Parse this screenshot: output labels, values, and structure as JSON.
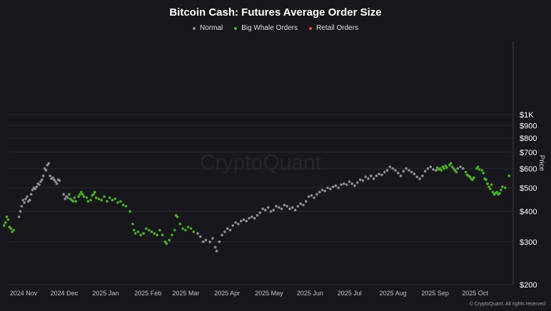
{
  "chart_data": {
    "type": "scatter",
    "title": "Bitcoin Cash: Futures Average Order Size",
    "ylabel": "Price",
    "watermark": "CryptoQuant",
    "credit": "© CryptoQuant. All rights reserved",
    "y_scale": "log",
    "ylim": [
      200,
      2000
    ],
    "xlim": [
      "2024-10-29",
      "2025-11-12"
    ],
    "grid": "horizontal",
    "legend_position": "top-center",
    "y_ticks": [
      {
        "value": 200,
        "label": "$200"
      },
      {
        "value": 300,
        "label": "$300"
      },
      {
        "value": 400,
        "label": "$400"
      },
      {
        "value": 500,
        "label": "$500"
      },
      {
        "value": 600,
        "label": "$600"
      },
      {
        "value": 700,
        "label": "$700"
      },
      {
        "value": 800,
        "label": "$800"
      },
      {
        "value": 900,
        "label": "$900"
      },
      {
        "value": 1000,
        "label": "$1K"
      }
    ],
    "x_ticks": [
      {
        "date": "2024-11-01",
        "label": "2024 Nov"
      },
      {
        "date": "2024-12-01",
        "label": "2024 Dec"
      },
      {
        "date": "2025-01-01",
        "label": "2025 Jan"
      },
      {
        "date": "2025-02-01",
        "label": "2025 Feb"
      },
      {
        "date": "2025-03-01",
        "label": "2025 Mar"
      },
      {
        "date": "2025-04-01",
        "label": "2025 Apr"
      },
      {
        "date": "2025-05-01",
        "label": "2025 May"
      },
      {
        "date": "2025-06-01",
        "label": "2025 Jun"
      },
      {
        "date": "2025-07-01",
        "label": "2025 Jul"
      },
      {
        "date": "2025-08-01",
        "label": "2025 Aug"
      },
      {
        "date": "2025-09-01",
        "label": "2025 Sep"
      },
      {
        "date": "2025-10-01",
        "label": "2025 Oct"
      }
    ],
    "series": [
      {
        "name": "Normal",
        "color": "#8d8d99",
        "points": [
          [
            "2024-11-12",
            380
          ],
          [
            "2024-11-13",
            400
          ],
          [
            "2024-11-14",
            420
          ],
          [
            "2024-11-15",
            445
          ],
          [
            "2024-11-16",
            435
          ],
          [
            "2024-11-17",
            450
          ],
          [
            "2024-11-18",
            460
          ],
          [
            "2024-11-19",
            440
          ],
          [
            "2024-11-20",
            445
          ],
          [
            "2024-11-21",
            470
          ],
          [
            "2024-11-22",
            490
          ],
          [
            "2024-11-23",
            500
          ],
          [
            "2024-11-24",
            495
          ],
          [
            "2024-11-25",
            505
          ],
          [
            "2024-11-26",
            520
          ],
          [
            "2024-11-27",
            515
          ],
          [
            "2024-11-28",
            530
          ],
          [
            "2024-11-29",
            540
          ],
          [
            "2024-11-30",
            560
          ],
          [
            "2024-12-01",
            600
          ],
          [
            "2024-12-02",
            590
          ],
          [
            "2024-12-03",
            620
          ],
          [
            "2024-12-04",
            630
          ],
          [
            "2024-12-05",
            560
          ],
          [
            "2024-12-06",
            545
          ],
          [
            "2024-12-07",
            550
          ],
          [
            "2024-12-08",
            540
          ],
          [
            "2024-12-09",
            530
          ],
          [
            "2024-12-10",
            520
          ],
          [
            "2024-12-11",
            540
          ],
          [
            "2024-12-12",
            535
          ],
          [
            "2024-12-15",
            470
          ],
          [
            "2024-12-16",
            450
          ],
          [
            "2024-12-17",
            460
          ],
          [
            "2024-12-18",
            455
          ],
          [
            "2025-03-24",
            325
          ],
          [
            "2025-03-26",
            315
          ],
          [
            "2025-03-28",
            300
          ],
          [
            "2025-03-30",
            305
          ],
          [
            "2025-04-02",
            300
          ],
          [
            "2025-04-04",
            310
          ],
          [
            "2025-04-06",
            285
          ],
          [
            "2025-04-07",
            275
          ],
          [
            "2025-04-09",
            300
          ],
          [
            "2025-04-11",
            320
          ],
          [
            "2025-04-13",
            330
          ],
          [
            "2025-04-15",
            340
          ],
          [
            "2025-04-17",
            335
          ],
          [
            "2025-04-19",
            350
          ],
          [
            "2025-04-21",
            360
          ],
          [
            "2025-04-23",
            355
          ],
          [
            "2025-04-25",
            365
          ],
          [
            "2025-04-27",
            370
          ],
          [
            "2025-04-29",
            365
          ],
          [
            "2025-05-01",
            375
          ],
          [
            "2025-05-03",
            380
          ],
          [
            "2025-05-05",
            375
          ],
          [
            "2025-05-07",
            385
          ],
          [
            "2025-05-09",
            395
          ],
          [
            "2025-05-11",
            410
          ],
          [
            "2025-05-13",
            405
          ],
          [
            "2025-05-15",
            415
          ],
          [
            "2025-05-17",
            400
          ],
          [
            "2025-05-19",
            405
          ],
          [
            "2025-05-21",
            420
          ],
          [
            "2025-05-23",
            415
          ],
          [
            "2025-05-25",
            410
          ],
          [
            "2025-05-27",
            425
          ],
          [
            "2025-05-29",
            420
          ],
          [
            "2025-05-31",
            410
          ],
          [
            "2025-06-02",
            415
          ],
          [
            "2025-06-04",
            405
          ],
          [
            "2025-06-06",
            420
          ],
          [
            "2025-06-08",
            430
          ],
          [
            "2025-06-10",
            425
          ],
          [
            "2025-06-12",
            440
          ],
          [
            "2025-06-14",
            460
          ],
          [
            "2025-06-16",
            465
          ],
          [
            "2025-06-18",
            455
          ],
          [
            "2025-06-20",
            470
          ],
          [
            "2025-06-22",
            480
          ],
          [
            "2025-06-24",
            490
          ],
          [
            "2025-06-26",
            485
          ],
          [
            "2025-06-28",
            500
          ],
          [
            "2025-06-30",
            495
          ],
          [
            "2025-07-02",
            505
          ],
          [
            "2025-07-04",
            510
          ],
          [
            "2025-07-06",
            500
          ],
          [
            "2025-07-08",
            515
          ],
          [
            "2025-07-10",
            520
          ],
          [
            "2025-07-12",
            515
          ],
          [
            "2025-07-14",
            530
          ],
          [
            "2025-07-16",
            520
          ],
          [
            "2025-07-18",
            510
          ],
          [
            "2025-07-20",
            525
          ],
          [
            "2025-07-22",
            540
          ],
          [
            "2025-07-24",
            535
          ],
          [
            "2025-07-26",
            555
          ],
          [
            "2025-07-28",
            545
          ],
          [
            "2025-07-30",
            560
          ],
          [
            "2025-08-01",
            545
          ],
          [
            "2025-08-03",
            560
          ],
          [
            "2025-08-05",
            570
          ],
          [
            "2025-08-07",
            565
          ],
          [
            "2025-08-09",
            580
          ],
          [
            "2025-08-11",
            590
          ],
          [
            "2025-08-13",
            610
          ],
          [
            "2025-08-15",
            600
          ],
          [
            "2025-08-17",
            590
          ],
          [
            "2025-08-19",
            575
          ],
          [
            "2025-08-21",
            560
          ],
          [
            "2025-08-23",
            585
          ],
          [
            "2025-08-25",
            600
          ],
          [
            "2025-08-27",
            590
          ],
          [
            "2025-08-29",
            580
          ],
          [
            "2025-08-31",
            570
          ],
          [
            "2025-09-02",
            555
          ],
          [
            "2025-09-04",
            545
          ],
          [
            "2025-09-06",
            560
          ],
          [
            "2025-09-08",
            585
          ],
          [
            "2025-09-10",
            600
          ],
          [
            "2025-09-12",
            610
          ],
          [
            "2025-09-14",
            595
          ],
          [
            "2025-09-16",
            590
          ],
          [
            "2025-10-02",
            600
          ],
          [
            "2025-10-04",
            610
          ],
          [
            "2025-10-06",
            600
          ]
        ]
      },
      {
        "name": "Big Whale Orders",
        "color": "#4caf2a",
        "points": [
          [
            "2024-11-01",
            350
          ],
          [
            "2024-11-02",
            360
          ],
          [
            "2024-11-03",
            380
          ],
          [
            "2024-11-04",
            370
          ],
          [
            "2024-11-05",
            345
          ],
          [
            "2024-11-06",
            340
          ],
          [
            "2024-11-07",
            330
          ],
          [
            "2024-11-08",
            335
          ],
          [
            "2024-12-19",
            470
          ],
          [
            "2024-12-20",
            450
          ],
          [
            "2024-12-21",
            445
          ],
          [
            "2024-12-22",
            440
          ],
          [
            "2024-12-23",
            455
          ],
          [
            "2024-12-24",
            440
          ],
          [
            "2024-12-26",
            460
          ],
          [
            "2024-12-27",
            470
          ],
          [
            "2024-12-28",
            480
          ],
          [
            "2024-12-29",
            470
          ],
          [
            "2024-12-30",
            460
          ],
          [
            "2025-01-01",
            455
          ],
          [
            "2025-01-02",
            440
          ],
          [
            "2025-01-04",
            445
          ],
          [
            "2025-01-05",
            465
          ],
          [
            "2025-01-06",
            470
          ],
          [
            "2025-01-07",
            480
          ],
          [
            "2025-01-08",
            455
          ],
          [
            "2025-01-10",
            450
          ],
          [
            "2025-01-12",
            445
          ],
          [
            "2025-01-14",
            460
          ],
          [
            "2025-01-16",
            440
          ],
          [
            "2025-01-18",
            455
          ],
          [
            "2025-01-20",
            445
          ],
          [
            "2025-01-22",
            450
          ],
          [
            "2025-01-24",
            435
          ],
          [
            "2025-01-26",
            440
          ],
          [
            "2025-01-28",
            425
          ],
          [
            "2025-01-30",
            420
          ],
          [
            "2025-02-02",
            400
          ],
          [
            "2025-02-04",
            355
          ],
          [
            "2025-02-05",
            335
          ],
          [
            "2025-02-06",
            325
          ],
          [
            "2025-02-08",
            330
          ],
          [
            "2025-02-10",
            320
          ],
          [
            "2025-02-12",
            325
          ],
          [
            "2025-02-14",
            340
          ],
          [
            "2025-02-16",
            335
          ],
          [
            "2025-02-18",
            330
          ],
          [
            "2025-02-20",
            325
          ],
          [
            "2025-02-22",
            320
          ],
          [
            "2025-02-24",
            335
          ],
          [
            "2025-02-26",
            320
          ],
          [
            "2025-02-28",
            300
          ],
          [
            "2025-03-01",
            295
          ],
          [
            "2025-03-03",
            305
          ],
          [
            "2025-03-05",
            320
          ],
          [
            "2025-03-07",
            335
          ],
          [
            "2025-03-08",
            385
          ],
          [
            "2025-03-09",
            380
          ],
          [
            "2025-03-11",
            355
          ],
          [
            "2025-03-13",
            340
          ],
          [
            "2025-03-15",
            335
          ],
          [
            "2025-03-17",
            345
          ],
          [
            "2025-03-19",
            340
          ],
          [
            "2025-03-21",
            330
          ],
          [
            "2025-09-17",
            605
          ],
          [
            "2025-09-18",
            595
          ],
          [
            "2025-09-19",
            600
          ],
          [
            "2025-09-20",
            590
          ],
          [
            "2025-09-21",
            610
          ],
          [
            "2025-09-22",
            600
          ],
          [
            "2025-09-23",
            615
          ],
          [
            "2025-09-24",
            605
          ],
          [
            "2025-09-26",
            620
          ],
          [
            "2025-09-27",
            630
          ],
          [
            "2025-09-28",
            610
          ],
          [
            "2025-09-29",
            600
          ],
          [
            "2025-09-30",
            590
          ],
          [
            "2025-10-01",
            580
          ],
          [
            "2025-10-08",
            580
          ],
          [
            "2025-10-09",
            565
          ],
          [
            "2025-10-10",
            560
          ],
          [
            "2025-10-11",
            555
          ],
          [
            "2025-10-12",
            545
          ],
          [
            "2025-10-13",
            540
          ],
          [
            "2025-10-14",
            550
          ],
          [
            "2025-10-16",
            600
          ],
          [
            "2025-10-17",
            610
          ],
          [
            "2025-10-18",
            595
          ],
          [
            "2025-10-20",
            590
          ],
          [
            "2025-10-21",
            575
          ],
          [
            "2025-10-22",
            545
          ],
          [
            "2025-10-23",
            540
          ],
          [
            "2025-10-24",
            520
          ],
          [
            "2025-10-25",
            505
          ],
          [
            "2025-10-26",
            495
          ],
          [
            "2025-10-27",
            515
          ],
          [
            "2025-10-28",
            480
          ],
          [
            "2025-10-29",
            470
          ],
          [
            "2025-10-30",
            475
          ],
          [
            "2025-10-31",
            480
          ],
          [
            "2025-11-01",
            470
          ],
          [
            "2025-11-02",
            475
          ],
          [
            "2025-11-03",
            490
          ],
          [
            "2025-11-04",
            505
          ],
          [
            "2025-11-06",
            500
          ],
          [
            "2025-11-09",
            560
          ]
        ]
      },
      {
        "name": "Retail Orders",
        "color": "#e04a3c",
        "points": []
      }
    ]
  }
}
